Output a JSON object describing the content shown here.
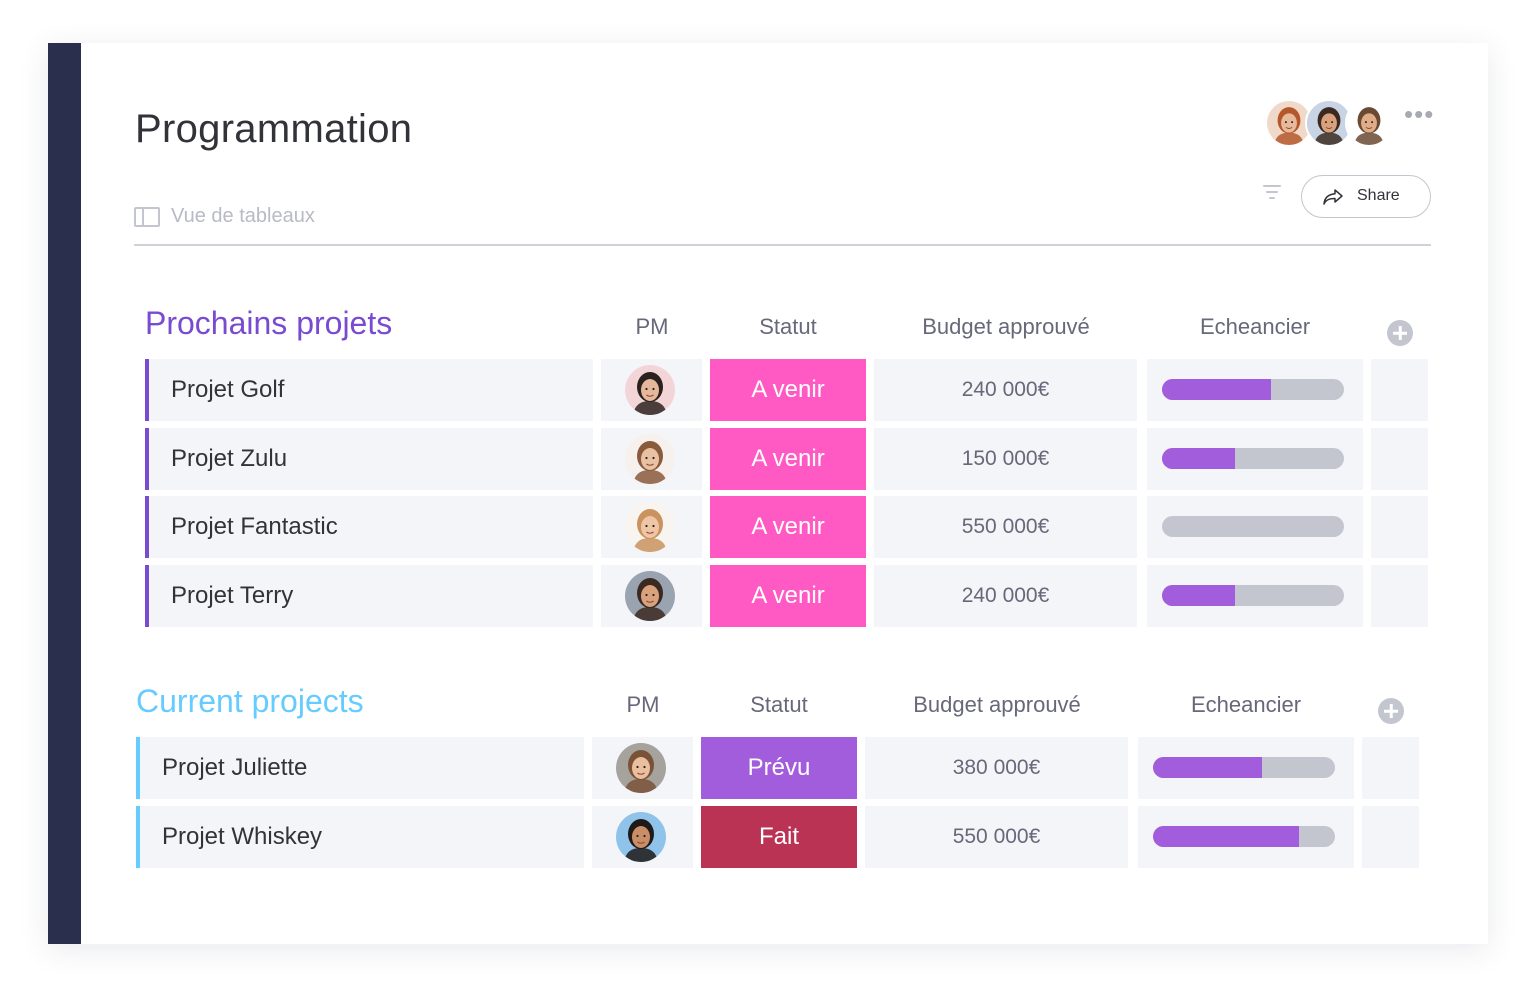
{
  "board": {
    "title": "Programmation",
    "view_label": "Vue de tableaux",
    "share_label": "Share",
    "more_icon": "ellipsis-icon",
    "members": [
      {
        "name": "member-1",
        "skin": "#e8b99a",
        "hair": "#b4582c",
        "bg": "#f0d9c8"
      },
      {
        "name": "member-2",
        "skin": "#d9a27c",
        "hair": "#3b2a22",
        "bg": "#c8d3e4"
      },
      {
        "name": "member-3",
        "skin": "#e1ad88",
        "hair": "#6a4a33",
        "bg": "#ffffff"
      }
    ]
  },
  "colors": {
    "sidebar": "#292f4c",
    "group_purple": "#784bd1",
    "group_blue": "#66ccff",
    "status_a_venir": "#ff5ac4",
    "status_prevu": "#a25ddc",
    "status_fait": "#bb3354",
    "timeline_fill": "#a25ddc",
    "timeline_track": "#c4c6cf"
  },
  "groups": [
    {
      "title": "Prochains projets",
      "color": "#784bd1",
      "columns": {
        "pm": "PM",
        "status": "Statut",
        "budget": "Budget approuvé",
        "timeline": "Echeancier"
      },
      "rows": [
        {
          "name": "Projet Golf",
          "pm": {
            "skin": "#e6b89b",
            "hair": "#2b2220",
            "bg": "#f3d5d8"
          },
          "status": "A venir",
          "status_color": "#ff5ac4",
          "budget": "240 000€",
          "progress": 0.6
        },
        {
          "name": "Projet Zulu",
          "pm": {
            "skin": "#e9c2a4",
            "hair": "#8a5a3c",
            "bg": "#f6f1ec"
          },
          "status": "A venir",
          "status_color": "#ff5ac4",
          "budget": "150 000€",
          "progress": 0.4
        },
        {
          "name": "Projet Fantastic",
          "pm": {
            "skin": "#eec6a6",
            "hair": "#c9925e",
            "bg": "#f8f4ef"
          },
          "status": "A venir",
          "status_color": "#ff5ac4",
          "budget": "550 000€",
          "progress": 0
        },
        {
          "name": "Projet Terry",
          "pm": {
            "skin": "#d9a27c",
            "hair": "#3b2a22",
            "bg": "#9aa3b0"
          },
          "status": "A venir",
          "status_color": "#ff5ac4",
          "budget": "240 000€",
          "progress": 0.4
        }
      ]
    },
    {
      "title": "Current projects",
      "color": "#66ccff",
      "columns": {
        "pm": "PM",
        "status": "Statut",
        "budget": "Budget approuvé",
        "timeline": "Echeancier"
      },
      "rows": [
        {
          "name": "Projet Juliette",
          "pm": {
            "skin": "#e9bf9f",
            "hair": "#7a5238",
            "bg": "#a6a39c"
          },
          "status": "Prévu",
          "status_color": "#a25ddc",
          "budget": "380 000€",
          "progress": 0.6
        },
        {
          "name": "Projet Whiskey",
          "pm": {
            "skin": "#c98d68",
            "hair": "#1f1a18",
            "bg": "#8fc3ea"
          },
          "status": "Fait",
          "status_color": "#bb3354",
          "budget": "550 000€",
          "progress": 0.8
        }
      ]
    }
  ]
}
